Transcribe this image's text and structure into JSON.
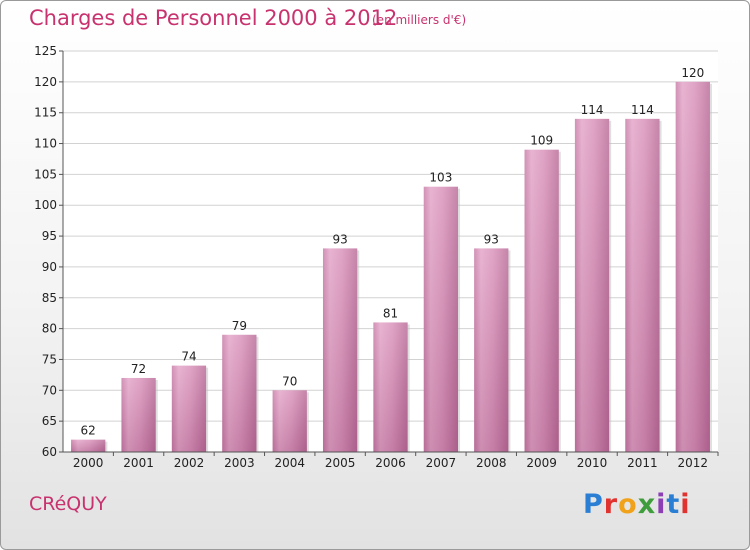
{
  "title": "Charges de Personnel 2000 à 2012",
  "subtitle": "(en milliers d'€)",
  "commune": "CRéQUY",
  "logo": {
    "letters": [
      "P",
      "r",
      "o",
      "x",
      "i",
      "t",
      "i"
    ]
  },
  "colors": {
    "bar": "#d88ab4",
    "title": "#c8326e"
  },
  "chart_data": {
    "type": "bar",
    "title": "Charges de Personnel 2000 à 2012",
    "subtitle": "(en milliers d'€)",
    "categories": [
      "2000",
      "2001",
      "2002",
      "2003",
      "2004",
      "2005",
      "2006",
      "2007",
      "2008",
      "2009",
      "2010",
      "2011",
      "2012"
    ],
    "values": [
      62,
      72,
      74,
      79,
      70,
      93,
      81,
      103,
      93,
      109,
      114,
      114,
      120
    ],
    "ylim": [
      60,
      125
    ],
    "yticks": [
      60,
      65,
      70,
      75,
      80,
      85,
      90,
      95,
      100,
      105,
      110,
      115,
      120,
      125
    ],
    "grid": true,
    "legend": "none"
  }
}
